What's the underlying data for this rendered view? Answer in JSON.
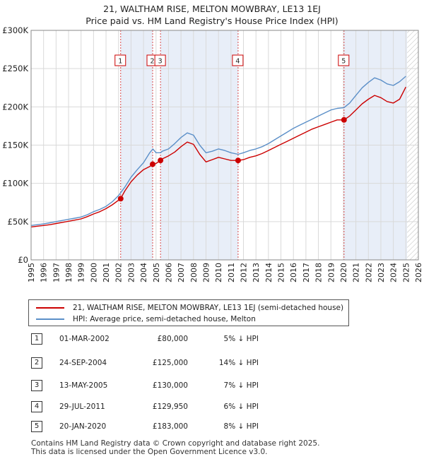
{
  "title_line1": "21, WALTHAM RISE, MELTON MOWBRAY, LE13 1EJ",
  "title_line2": "Price paid vs. HM Land Registry's House Price Index (HPI)",
  "legend": {
    "items": [
      {
        "label": "21, WALTHAM RISE, MELTON MOWBRAY, LE13 1EJ (semi-detached house)",
        "color": "#cc0000"
      },
      {
        "label": "HPI: Average price, semi-detached house, Melton",
        "color": "#5b8fc8"
      }
    ]
  },
  "transactions": [
    {
      "num": "1",
      "date": "01-MAR-2002",
      "price": "£80,000",
      "hpi": "5% ↓ HPI"
    },
    {
      "num": "2",
      "date": "24-SEP-2004",
      "price": "£125,000",
      "hpi": "14% ↓ HPI"
    },
    {
      "num": "3",
      "date": "13-MAY-2005",
      "price": "£130,000",
      "hpi": "7% ↓ HPI"
    },
    {
      "num": "4",
      "date": "29-JUL-2011",
      "price": "£129,950",
      "hpi": "6% ↓ HPI"
    },
    {
      "num": "5",
      "date": "20-JAN-2020",
      "price": "£183,000",
      "hpi": "8% ↓ HPI"
    }
  ],
  "footer": {
    "line1": "Contains HM Land Registry data © Crown copyright and database right 2025.",
    "line2": "This data is licensed under the Open Government Licence v3.0."
  },
  "chart_data": {
    "type": "line",
    "xlim": [
      1995,
      2026
    ],
    "ylim": [
      0,
      300000
    ],
    "y_ticks": [
      0,
      50000,
      100000,
      150000,
      200000,
      250000,
      300000
    ],
    "y_tick_labels": [
      "£0",
      "£50K",
      "£100K",
      "£150K",
      "£200K",
      "£250K",
      "£300K"
    ],
    "x_ticks": [
      1995,
      1996,
      1997,
      1998,
      1999,
      2000,
      2001,
      2002,
      2003,
      2004,
      2005,
      2006,
      2007,
      2008,
      2009,
      2010,
      2011,
      2012,
      2013,
      2014,
      2015,
      2016,
      2017,
      2018,
      2019,
      2020,
      2021,
      2022,
      2023,
      2024,
      2025,
      2026
    ],
    "grid": true,
    "future_hatch_from": 2025.1,
    "colors": {
      "hpi": "#5b8fc8",
      "price": "#cc0000",
      "shade": "#e8eef8",
      "grid": "#d9d9d9",
      "vline": "#cc0000"
    },
    "shaded_spans": [
      [
        2002.17,
        2004.73
      ],
      [
        2005.36,
        2011.57
      ],
      [
        2020.05,
        2025.1
      ]
    ],
    "series": [
      {
        "name": "HPI: Average price, semi-detached house, Melton",
        "x": [
          1995.0,
          1995.5,
          1996.0,
          1996.5,
          1997.0,
          1997.5,
          1998.0,
          1998.5,
          1999.0,
          1999.5,
          2000.0,
          2000.5,
          2001.0,
          2001.5,
          2002.0,
          2002.5,
          2003.0,
          2003.5,
          2004.0,
          2004.5,
          2004.75,
          2005.0,
          2005.36,
          2005.5,
          2006.0,
          2006.5,
          2007.0,
          2007.5,
          2008.0,
          2008.5,
          2009.0,
          2009.5,
          2010.0,
          2010.5,
          2011.0,
          2011.57,
          2012.0,
          2012.5,
          2013.0,
          2013.5,
          2014.0,
          2014.5,
          2015.0,
          2015.5,
          2016.0,
          2016.5,
          2017.0,
          2017.5,
          2018.0,
          2018.5,
          2019.0,
          2019.5,
          2020.05,
          2020.5,
          2021.0,
          2021.5,
          2022.0,
          2022.5,
          2023.0,
          2023.5,
          2024.0,
          2024.5,
          2025.0
        ],
        "values": [
          45000,
          46000,
          47000,
          48500,
          50000,
          51500,
          53000,
          54500,
          56000,
          59000,
          63000,
          66000,
          70000,
          76000,
          84000,
          95000,
          108000,
          118000,
          127000,
          140000,
          145000,
          140000,
          140000,
          142000,
          145000,
          152000,
          160000,
          166000,
          163000,
          150000,
          140000,
          142000,
          145000,
          143000,
          140000,
          138000,
          140000,
          143000,
          145000,
          148000,
          152000,
          157000,
          162000,
          167000,
          172000,
          176000,
          180000,
          184000,
          188000,
          192000,
          196000,
          198000,
          199000,
          205000,
          215000,
          225000,
          232000,
          238000,
          235000,
          230000,
          228000,
          233000,
          240000
        ]
      },
      {
        "name": "21, WALTHAM RISE, MELTON MOWBRAY, LE13 1EJ (semi-detached house)",
        "x": [
          1995.0,
          1995.5,
          1996.0,
          1996.5,
          1997.0,
          1997.5,
          1998.0,
          1998.5,
          1999.0,
          1999.5,
          2000.0,
          2000.5,
          2001.0,
          2001.5,
          2002.17,
          2002.5,
          2003.0,
          2003.5,
          2004.0,
          2004.5,
          2004.73,
          2005.0,
          2005.36,
          2005.5,
          2006.0,
          2006.5,
          2007.0,
          2007.5,
          2008.0,
          2008.5,
          2009.0,
          2009.5,
          2010.0,
          2010.5,
          2011.0,
          2011.57,
          2012.0,
          2012.5,
          2013.0,
          2013.5,
          2014.0,
          2014.5,
          2015.0,
          2015.5,
          2016.0,
          2016.5,
          2017.0,
          2017.5,
          2018.0,
          2018.5,
          2019.0,
          2019.5,
          2020.05,
          2020.5,
          2021.0,
          2021.5,
          2022.0,
          2022.5,
          2023.0,
          2023.5,
          2024.0,
          2024.5,
          2025.0
        ],
        "values": [
          43000,
          44000,
          45000,
          46000,
          47500,
          49000,
          50500,
          52000,
          53500,
          56500,
          60000,
          63000,
          67000,
          72000,
          80000,
          90000,
          102000,
          111000,
          118000,
          122000,
          125000,
          126000,
          130000,
          132000,
          136000,
          141000,
          148000,
          154000,
          151000,
          138000,
          128000,
          131000,
          134000,
          132000,
          130000,
          129950,
          131000,
          134000,
          136000,
          139000,
          143000,
          147000,
          151000,
          155000,
          159000,
          163000,
          167000,
          171000,
          174000,
          177000,
          180000,
          183000,
          183000,
          188000,
          196000,
          204000,
          210000,
          215000,
          212000,
          207000,
          205000,
          210000,
          226000
        ]
      }
    ],
    "markers": [
      {
        "label": "1",
        "x": 2002.17,
        "y": 80000
      },
      {
        "label": "2",
        "x": 2004.73,
        "y": 125000
      },
      {
        "label": "3",
        "x": 2005.36,
        "y": 130000
      },
      {
        "label": "4",
        "x": 2011.57,
        "y": 129950
      },
      {
        "label": "5",
        "x": 2020.05,
        "y": 183000
      }
    ]
  }
}
